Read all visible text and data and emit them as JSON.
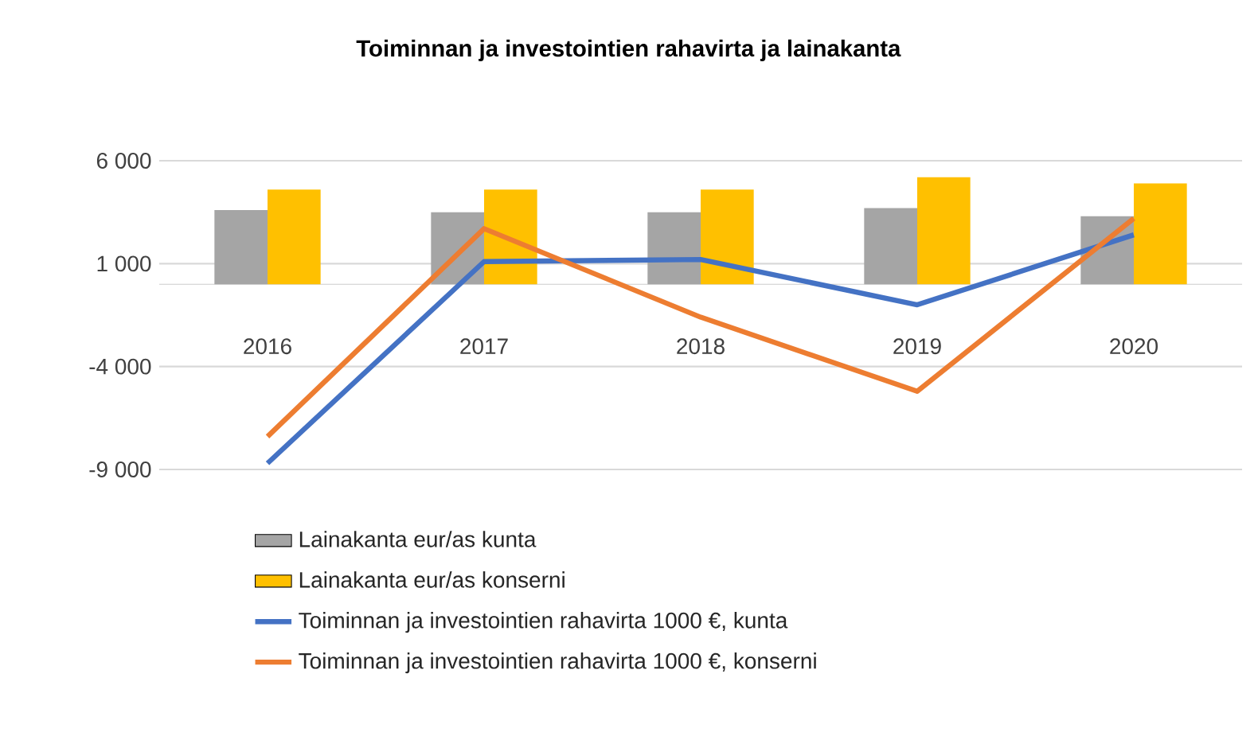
{
  "chart_data": {
    "type": "bar",
    "title": "Toiminnan ja investointien rahavirta ja lainakanta",
    "categories": [
      "2016",
      "2017",
      "2018",
      "2019",
      "2020"
    ],
    "series": [
      {
        "name": "Lainakanta eur/as kunta",
        "color": "#a5a5a5",
        "values": [
          3600,
          3500,
          3500,
          3700,
          3300
        ]
      },
      {
        "name": "Lainakanta eur/as konserni",
        "color": "#ffc000",
        "values": [
          4600,
          4600,
          4600,
          5200,
          4900
        ]
      },
      {
        "name": "Toiminnan ja investointien rahavirta 1000 €, kunta",
        "type": "line",
        "color": "#4472c4",
        "values": [
          -8700,
          1100,
          1200,
          -1000,
          2400
        ]
      },
      {
        "name": "Toiminnan ja investointien rahavirta 1000 €, konserni",
        "type": "line",
        "color": "#ed7d31",
        "values": [
          -7400,
          2700,
          -1600,
          -5200,
          3200
        ]
      }
    ],
    "ylim": [
      -9000,
      6000
    ],
    "yticks": [
      {
        "value": -9000,
        "label": "-9 000"
      },
      {
        "value": -4000,
        "label": "-4 000"
      },
      {
        "value": 1000,
        "label": "1 000"
      },
      {
        "value": 6000,
        "label": "6 000"
      }
    ],
    "grid": "y",
    "legend": "bottom",
    "marker": "none",
    "line_style": "solid"
  }
}
